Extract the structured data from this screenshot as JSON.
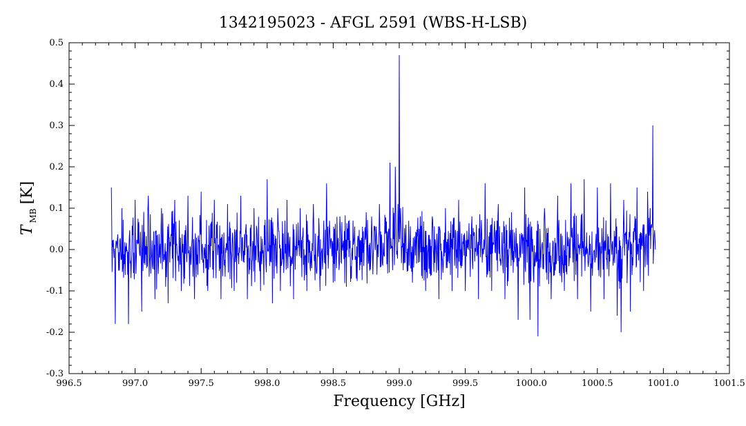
{
  "chart_data": {
    "type": "line",
    "title": "1342195023 - AFGL 2591 (WBS-H-LSB)",
    "xlabel": "Frequency [GHz]",
    "ylabel": {
      "main": "T",
      "sub": "MB",
      "unit": "[K]"
    },
    "xlim": [
      996.5,
      1001.5
    ],
    "ylim": [
      -0.3,
      0.5
    ],
    "x_tick_labels": [
      "996.5",
      "997.0",
      "997.5",
      "998.0",
      "998.5",
      "999.0",
      "999.5",
      "1000.0",
      "1000.5",
      "1001.0",
      "1001.5"
    ],
    "y_tick_labels": [
      "-0.3",
      "-0.2",
      "-0.1",
      "0.0",
      "0.1",
      "0.2",
      "0.3",
      "0.4",
      "0.5"
    ],
    "grid": false,
    "legend": "none",
    "series_color": "#0000ff",
    "series": [
      {
        "x": [
          996.82,
          996.85,
          996.9,
          996.95,
          997.0,
          997.05,
          997.1,
          997.15,
          997.2,
          997.25,
          997.3,
          997.35,
          997.4,
          997.45,
          997.5,
          997.55,
          997.6,
          997.65,
          997.7,
          997.75,
          997.8,
          997.85,
          997.9,
          997.95,
          998.0,
          998.04,
          998.08,
          998.1,
          998.15,
          998.2,
          998.25,
          998.3,
          998.35,
          998.4,
          998.45,
          998.5,
          998.55,
          998.6,
          998.65,
          998.7,
          998.75,
          998.8,
          998.85,
          998.9,
          998.93,
          998.95,
          998.97,
          998.99,
          999.0,
          999.01,
          999.03,
          999.05,
          999.1,
          999.15,
          999.2,
          999.25,
          999.3,
          999.35,
          999.4,
          999.45,
          999.5,
          999.55,
          999.6,
          999.65,
          999.7,
          999.75,
          999.8,
          999.85,
          999.9,
          999.95,
          999.99,
          1000.0,
          1000.05,
          1000.1,
          1000.15,
          1000.2,
          1000.25,
          1000.3,
          1000.35,
          1000.4,
          1000.45,
          1000.5,
          1000.55,
          1000.6,
          1000.65,
          1000.68,
          1000.7,
          1000.75,
          1000.8,
          1000.85,
          1000.88,
          1000.9,
          1000.92,
          1000.94
        ],
        "y": [
          0.15,
          -0.18,
          0.1,
          -0.18,
          0.12,
          -0.15,
          0.13,
          -0.12,
          0.1,
          -0.13,
          0.12,
          -0.1,
          0.13,
          -0.12,
          0.14,
          -0.1,
          0.12,
          -0.12,
          0.11,
          -0.1,
          0.13,
          -0.12,
          0.1,
          -0.1,
          0.17,
          -0.13,
          0.1,
          -0.1,
          0.12,
          -0.12,
          0.1,
          -0.1,
          0.11,
          -0.1,
          0.16,
          -0.08,
          0.08,
          -0.09,
          0.07,
          -0.05,
          0.09,
          -0.06,
          0.11,
          0.04,
          0.21,
          -0.05,
          0.2,
          0.11,
          0.47,
          0.1,
          -0.05,
          0.06,
          -0.08,
          0.05,
          -0.1,
          0.08,
          -0.12,
          0.1,
          -0.1,
          0.12,
          -0.1,
          0.08,
          -0.12,
          0.16,
          -0.1,
          0.11,
          -0.12,
          0.09,
          -0.17,
          0.15,
          -0.17,
          0.05,
          -0.21,
          0.1,
          -0.12,
          0.13,
          -0.1,
          0.16,
          -0.12,
          0.17,
          -0.15,
          0.15,
          -0.12,
          0.16,
          -0.16,
          -0.2,
          0.12,
          -0.15,
          0.15,
          -0.1,
          0.14,
          0.1,
          0.3,
          0.0
        ]
      }
    ]
  }
}
